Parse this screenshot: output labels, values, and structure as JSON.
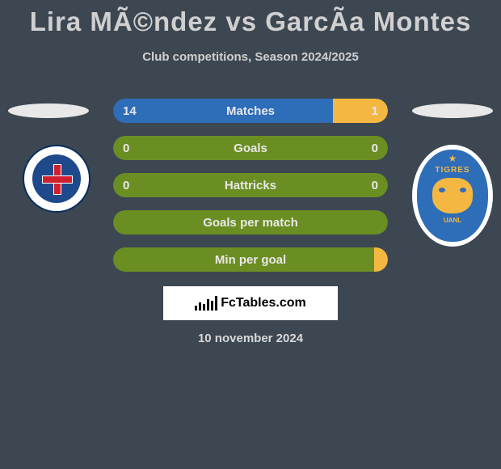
{
  "title": "Lira MÃ©ndez vs GarcÃ­a Montes",
  "subtitle": "Club competitions, Season 2024/2025",
  "date": "10 november 2024",
  "colors": {
    "background": "#3d4752",
    "text": "#d0d0d0",
    "stat_text": "#e8e8e8",
    "player1_bar": "#2e6db8",
    "player2_bar": "#f4b842",
    "neutral_bar": "#6b8e23"
  },
  "stats": [
    {
      "label": "Matches",
      "left_value": "14",
      "right_value": "1",
      "left_color": "#2e6db8",
      "right_color": "#f4b842",
      "left_pct": 80,
      "right_pct": 20
    },
    {
      "label": "Goals",
      "left_value": "0",
      "right_value": "0",
      "left_color": "#6b8e23",
      "right_color": "#6b8e23",
      "left_pct": 100,
      "right_pct": 0
    },
    {
      "label": "Hattricks",
      "left_value": "0",
      "right_value": "0",
      "left_color": "#6b8e23",
      "right_color": "#6b8e23",
      "left_pct": 100,
      "right_pct": 0
    },
    {
      "label": "Goals per match",
      "left_value": "",
      "right_value": "",
      "left_color": "#6b8e23",
      "right_color": "#6b8e23",
      "left_pct": 100,
      "right_pct": 0
    },
    {
      "label": "Min per goal",
      "left_value": "",
      "right_value": "",
      "left_color": "#6b8e23",
      "right_color": "#6b8e23",
      "left_pct": 95,
      "right_pct": 5,
      "right_color_override": "#f4b842"
    }
  ],
  "team_left": {
    "name": "Cruz Azul",
    "badge_bg": "#ffffff",
    "badge_inner": "#1e4a8c",
    "cross_color": "#d02030"
  },
  "team_right": {
    "name": "Tigres UANL",
    "badge_bg": "#ffffff",
    "badge_inner": "#2e6db8",
    "accent": "#f4b842",
    "text_top": "TIGRES",
    "text_bottom": "UANL"
  },
  "watermark": "FcTables.com"
}
